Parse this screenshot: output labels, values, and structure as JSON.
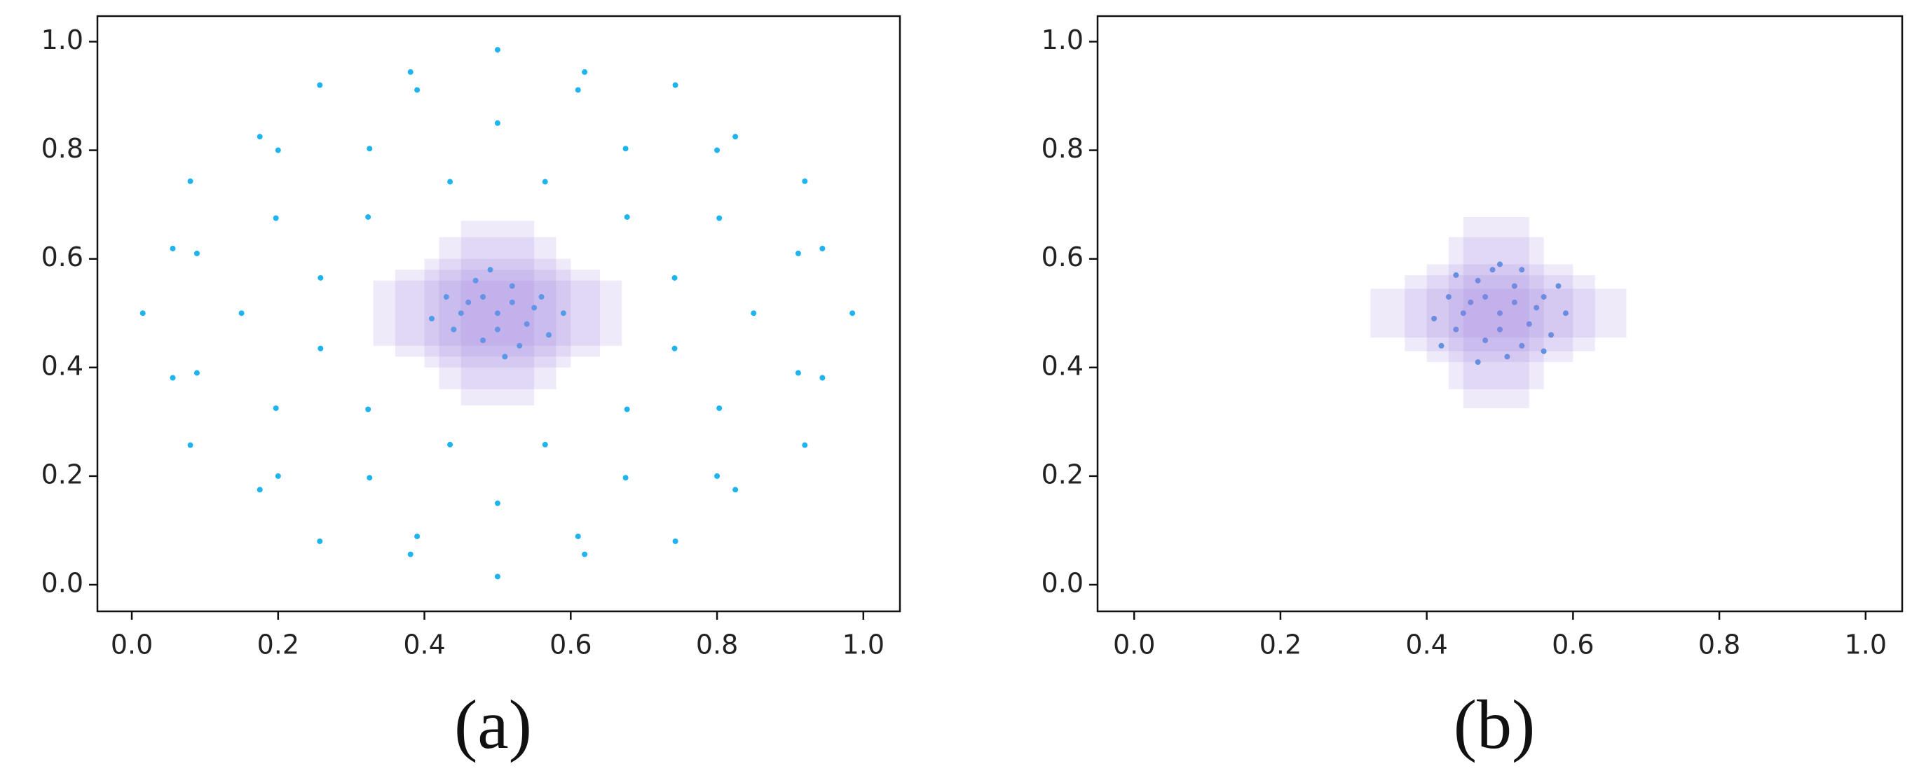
{
  "chart_data": [
    {
      "type": "scatter",
      "caption": "(a)",
      "xlim": [
        -0.047,
        1.05
      ],
      "ylim": [
        -0.049,
        1.047
      ],
      "xticks": [
        {
          "value": 0,
          "label": "0.0"
        },
        0.2,
        0.4,
        0.6,
        0.8,
        {
          "value": 1,
          "label": "1.0"
        }
      ],
      "yticks": [
        {
          "value": 0,
          "label": "0.0"
        },
        0.2,
        0.4,
        0.6,
        0.8,
        {
          "value": 1,
          "label": "1.0"
        }
      ],
      "region_color": "#9b7fe0",
      "regions": [
        {
          "x": [
            0.33,
            0.67
          ],
          "y": [
            0.44,
            0.56
          ]
        },
        {
          "x": [
            0.36,
            0.64
          ],
          "y": [
            0.42,
            0.58
          ]
        },
        {
          "x": [
            0.45,
            0.55
          ],
          "y": [
            0.33,
            0.67
          ]
        },
        {
          "x": [
            0.42,
            0.58
          ],
          "y": [
            0.36,
            0.64
          ]
        },
        {
          "x": [
            0.4,
            0.6
          ],
          "y": [
            0.4,
            0.6
          ]
        }
      ],
      "series": [
        {
          "color": "#1fb4f0",
          "x": [
            0.985,
            0.92,
            0.743,
            0.5,
            0.257,
            0.08,
            0.015,
            0.08,
            0.257,
            0.5,
            0.743,
            0.92,
            0.911,
            0.8,
            0.61,
            0.39,
            0.2,
            0.089,
            0.089,
            0.2,
            0.39,
            0.61,
            0.8,
            0.911,
            0.85,
            0.803,
            0.675,
            0.5,
            0.325,
            0.197,
            0.15,
            0.197,
            0.325,
            0.5,
            0.675,
            0.803,
            0.742,
            0.677,
            0.565,
            0.435,
            0.323,
            0.258,
            0.258,
            0.323,
            0.435,
            0.565,
            0.677,
            0.742,
            0.944,
            0.825,
            0.619,
            0.381,
            0.175,
            0.056,
            0.056,
            0.175,
            0.381,
            0.619,
            0.825,
            0.944,
            0.5,
            0.46,
            0.54,
            0.52,
            0.48,
            0.44,
            0.56,
            0.51,
            0.49,
            0.43,
            0.57,
            0.47,
            0.53,
            0.45,
            0.55,
            0.5,
            0.52,
            0.41,
            0.59,
            0.48
          ],
          "y": [
            0.5,
            0.743,
            0.92,
            0.985,
            0.92,
            0.743,
            0.5,
            0.257,
            0.08,
            0.015,
            0.08,
            0.257,
            0.61,
            0.8,
            0.911,
            0.911,
            0.8,
            0.61,
            0.39,
            0.2,
            0.089,
            0.089,
            0.2,
            0.39,
            0.5,
            0.675,
            0.803,
            0.85,
            0.803,
            0.675,
            0.5,
            0.325,
            0.197,
            0.15,
            0.197,
            0.325,
            0.565,
            0.677,
            0.742,
            0.742,
            0.677,
            0.565,
            0.435,
            0.323,
            0.258,
            0.258,
            0.323,
            0.435,
            0.619,
            0.825,
            0.944,
            0.944,
            0.825,
            0.619,
            0.381,
            0.175,
            0.056,
            0.056,
            0.175,
            0.381,
            0.5,
            0.52,
            0.48,
            0.55,
            0.45,
            0.47,
            0.53,
            0.42,
            0.58,
            0.53,
            0.46,
            0.56,
            0.44,
            0.5,
            0.51,
            0.47,
            0.52,
            0.49,
            0.5,
            0.53
          ]
        }
      ]
    },
    {
      "type": "scatter",
      "caption": "(b)",
      "xlim": [
        -0.05,
        1.05
      ],
      "ylim": [
        -0.049,
        1.047
      ],
      "xticks": [
        {
          "value": 0,
          "label": "0.0"
        },
        0.2,
        0.4,
        0.6,
        0.8,
        {
          "value": 1,
          "label": "1.0"
        }
      ],
      "yticks": [
        {
          "value": 0,
          "label": "0.0"
        },
        0.2,
        0.4,
        0.6,
        0.8,
        {
          "value": 1,
          "label": "1.0"
        }
      ],
      "region_color": "#9b7fe0",
      "regions": [
        {
          "x": [
            0.323,
            0.673
          ],
          "y": [
            0.455,
            0.545
          ]
        },
        {
          "x": [
            0.37,
            0.63
          ],
          "y": [
            0.43,
            0.57
          ]
        },
        {
          "x": [
            0.45,
            0.54
          ],
          "y": [
            0.325,
            0.677
          ]
        },
        {
          "x": [
            0.43,
            0.56
          ],
          "y": [
            0.36,
            0.64
          ]
        },
        {
          "x": [
            0.4,
            0.6
          ],
          "y": [
            0.41,
            0.59
          ]
        }
      ],
      "series": [
        {
          "color": "#4a9be0",
          "x": [
            0.5,
            0.46,
            0.54,
            0.52,
            0.48,
            0.44,
            0.56,
            0.51,
            0.49,
            0.43,
            0.57,
            0.47,
            0.53,
            0.45,
            0.55,
            0.5,
            0.52,
            0.41,
            0.59,
            0.48,
            0.42,
            0.58,
            0.44,
            0.56,
            0.5,
            0.47,
            0.53
          ],
          "y": [
            0.5,
            0.52,
            0.48,
            0.55,
            0.45,
            0.47,
            0.53,
            0.42,
            0.58,
            0.53,
            0.46,
            0.56,
            0.44,
            0.5,
            0.51,
            0.47,
            0.52,
            0.49,
            0.5,
            0.53,
            0.44,
            0.55,
            0.57,
            0.43,
            0.59,
            0.41,
            0.58
          ]
        }
      ]
    }
  ]
}
